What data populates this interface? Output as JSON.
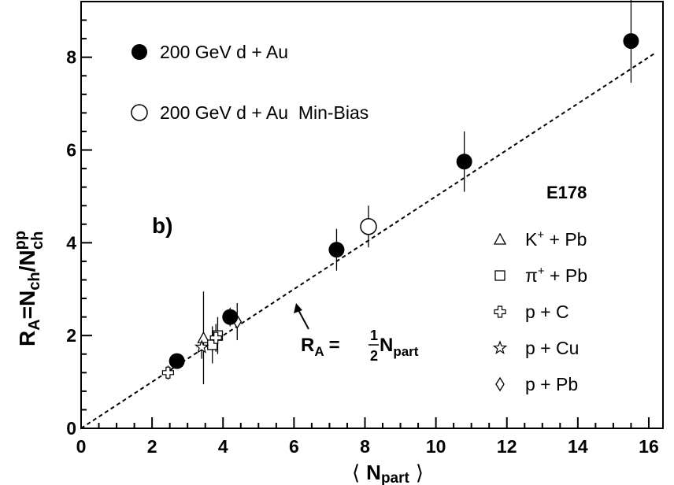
{
  "chart_data": {
    "type": "scatter",
    "panel_label": "b)",
    "xlim": [
      0,
      16.4
    ],
    "ylim": [
      0,
      9.2
    ],
    "x_ticks": [
      0,
      2,
      4,
      6,
      8,
      10,
      12,
      14,
      16
    ],
    "y_ticks": [
      0,
      2,
      4,
      6,
      8
    ],
    "x_tick_labels": [
      "0",
      "2",
      "4",
      "6",
      "8",
      "10",
      "12",
      "14",
      "16"
    ],
    "y_tick_labels": [
      "0",
      "2",
      "4",
      "6",
      "8"
    ],
    "xlabel": {
      "open": "⟨",
      "main": "N",
      "sub": "part",
      "close": "⟩"
    },
    "ylabel": {
      "r": "R",
      "r_sub": "A",
      "eq": "=N",
      "ch_sub": "ch",
      "slash": "/N",
      "pp_sup": "pp",
      "ch_sub2": "ch"
    },
    "fit_line": {
      "slope": 0.5,
      "intercept": 0,
      "x_range": [
        0,
        16.2
      ],
      "style": "dashed"
    },
    "fit_label": {
      "r": "R",
      "r_sub": "A",
      "eq": "=",
      "num": "1",
      "den": "2",
      "n": "N",
      "n_sub": "part"
    },
    "legend_left": [
      {
        "marker": "filled-circle",
        "label": "200 GeV d + Au"
      },
      {
        "marker": "open-circle",
        "label": "200 GeV d + Au  Min-Bias"
      }
    ],
    "legend_right_title": "E178",
    "legend_right": [
      {
        "marker": "triangle",
        "base": "K",
        "sup": "+",
        "rest": " + Pb"
      },
      {
        "marker": "square",
        "base": "π",
        "sup": "+",
        "rest": " + Pb"
      },
      {
        "marker": "cross",
        "base": "p + C",
        "sup": "",
        "rest": ""
      },
      {
        "marker": "star",
        "base": "p + Cu",
        "sup": "",
        "rest": ""
      },
      {
        "marker": "diamond",
        "base": "p + Pb",
        "sup": "",
        "rest": ""
      }
    ],
    "series": [
      {
        "name": "200 GeV d + Au",
        "marker": "filled-circle",
        "points": [
          {
            "x": 2.7,
            "y": 1.45,
            "yerr": 0.12
          },
          {
            "x": 4.2,
            "y": 2.4,
            "yerr": 0.2
          },
          {
            "x": 7.2,
            "y": 3.85,
            "yerr": 0.45
          },
          {
            "x": 10.8,
            "y": 5.75,
            "yerr": 0.65
          },
          {
            "x": 15.5,
            "y": 8.35,
            "yerr": 0.9
          }
        ]
      },
      {
        "name": "200 GeV d + Au  Min-Bias",
        "marker": "open-circle",
        "points": [
          {
            "x": 8.1,
            "y": 4.35,
            "yerr": 0.45
          }
        ]
      },
      {
        "name": "K+ + Pb",
        "marker": "triangle",
        "points": [
          {
            "x": 3.45,
            "y": 1.95,
            "yerr": 1.0
          }
        ]
      },
      {
        "name": "π+ + Pb",
        "marker": "square",
        "points": [
          {
            "x": 3.7,
            "y": 1.8,
            "yerr": 0.4
          },
          {
            "x": 3.85,
            "y": 2.0,
            "yerr": 0.4
          }
        ]
      },
      {
        "name": "p + C",
        "marker": "cross",
        "points": [
          {
            "x": 2.45,
            "y": 1.2,
            "yerr": 0.15
          },
          {
            "x": 3.8,
            "y": 1.95,
            "yerr": 0.3
          }
        ]
      },
      {
        "name": "p + Cu",
        "marker": "star",
        "points": [
          {
            "x": 3.4,
            "y": 1.75,
            "yerr": 0.25
          }
        ]
      },
      {
        "name": "p + Pb",
        "marker": "diamond",
        "points": [
          {
            "x": 4.4,
            "y": 2.3,
            "yerr": 0.4
          }
        ]
      }
    ]
  }
}
